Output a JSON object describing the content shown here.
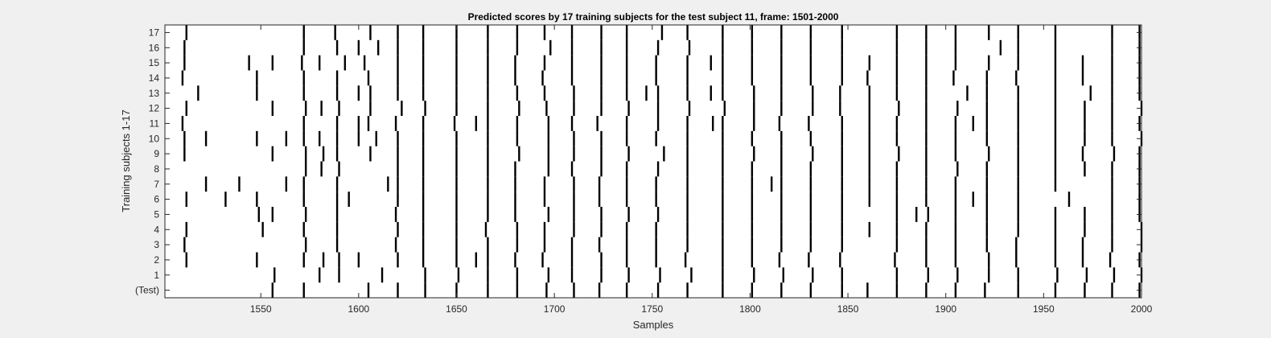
{
  "chart_data": {
    "type": "raster",
    "title": "Predicted scores by 17 training subjects for the test subject 11, frame: 1501-2000",
    "xlabel": "Samples",
    "ylabel": "Training subjects 1-17",
    "xlim": [
      1501,
      2000
    ],
    "x_ticks": [
      1550,
      1600,
      1650,
      1700,
      1750,
      1800,
      1850,
      1900,
      1950,
      2000
    ],
    "y_tick_labels": [
      "(Test)",
      "1",
      "2",
      "3",
      "4",
      "5",
      "6",
      "7",
      "8",
      "9",
      "10",
      "11",
      "12",
      "13",
      "14",
      "15",
      "16",
      "17"
    ],
    "grid": false,
    "colors": {
      "mark": "#000000",
      "plot_bg": "#ffffff",
      "figure_bg": "#f0f0f0",
      "axis": "#262626"
    },
    "rows": [
      {
        "label": "(Test)",
        "x": [
          1556,
          1572,
          1605,
          1620,
          1634,
          1650,
          1666,
          1681,
          1696,
          1710,
          1723,
          1737,
          1753,
          1768,
          1786,
          1801,
          1816,
          1831,
          1847,
          1860,
          1875,
          1890,
          1905,
          1920,
          1937,
          1956,
          1971,
          1985,
          1999
        ]
      },
      {
        "label": "1",
        "x": [
          1557,
          1580,
          1590,
          1612,
          1634,
          1651,
          1666,
          1681,
          1697,
          1709,
          1724,
          1738,
          1754,
          1770,
          1786,
          1802,
          1817,
          1832,
          1847,
          1875,
          1891,
          1906,
          1922,
          1937,
          1957,
          1972,
          1986,
          2000
        ]
      },
      {
        "label": "2",
        "x": [
          1512,
          1548,
          1572,
          1582,
          1590,
          1600,
          1620,
          1633,
          1650,
          1660,
          1666,
          1680,
          1694,
          1709,
          1724,
          1737,
          1752,
          1767,
          1786,
          1801,
          1815,
          1830,
          1846,
          1874,
          1890,
          1905,
          1922,
          1936,
          1956,
          1970,
          1984,
          1999
        ]
      },
      {
        "label": "3",
        "x": [
          1511,
          1573,
          1589,
          1619,
          1633,
          1650,
          1666,
          1681,
          1695,
          1709,
          1723,
          1737,
          1752,
          1768,
          1786,
          1801,
          1816,
          1831,
          1847,
          1875,
          1890,
          1905,
          1921,
          1936,
          1956,
          1970,
          1985,
          2000
        ]
      },
      {
        "label": "4",
        "x": [
          1512,
          1551,
          1572,
          1589,
          1620,
          1633,
          1650,
          1665,
          1681,
          1695,
          1710,
          1724,
          1737,
          1752,
          1768,
          1786,
          1801,
          1816,
          1831,
          1847,
          1861,
          1875,
          1890,
          1905,
          1921,
          1937,
          1956,
          1971,
          1985,
          2000
        ]
      },
      {
        "label": "5",
        "x": [
          1549,
          1556,
          1573,
          1589,
          1619,
          1633,
          1650,
          1666,
          1680,
          1697,
          1710,
          1724,
          1738,
          1753,
          1768,
          1786,
          1801,
          1816,
          1831,
          1847,
          1875,
          1885,
          1891,
          1905,
          1921,
          1937,
          1956,
          1971,
          1985,
          1999
        ]
      },
      {
        "label": "6",
        "x": [
          1512,
          1532,
          1548,
          1572,
          1589,
          1595,
          1620,
          1633,
          1650,
          1666,
          1680,
          1695,
          1710,
          1723,
          1737,
          1752,
          1768,
          1786,
          1801,
          1816,
          1831,
          1847,
          1861,
          1875,
          1890,
          1905,
          1914,
          1921,
          1937,
          1963,
          1985,
          1999
        ]
      },
      {
        "label": "7",
        "x": [
          1522,
          1539,
          1563,
          1572,
          1589,
          1615,
          1620,
          1633,
          1650,
          1666,
          1680,
          1695,
          1710,
          1723,
          1737,
          1752,
          1768,
          1786,
          1801,
          1811,
          1816,
          1831,
          1847,
          1861,
          1875,
          1890,
          1905,
          1921,
          1937,
          1956,
          1985,
          1999
        ]
      },
      {
        "label": "8",
        "x": [
          1573,
          1581,
          1590,
          1620,
          1633,
          1650,
          1666,
          1680,
          1697,
          1709,
          1724,
          1737,
          1753,
          1768,
          1786,
          1801,
          1816,
          1831,
          1847,
          1861,
          1875,
          1890,
          1906,
          1921,
          1937,
          1956,
          1971,
          1985,
          1999
        ]
      },
      {
        "label": "9",
        "x": [
          1511,
          1556,
          1573,
          1582,
          1589,
          1606,
          1620,
          1633,
          1650,
          1666,
          1682,
          1697,
          1710,
          1724,
          1738,
          1756,
          1768,
          1786,
          1802,
          1816,
          1832,
          1847,
          1861,
          1876,
          1890,
          1905,
          1922,
          1937,
          1956,
          1970,
          1986,
          1999
        ]
      },
      {
        "label": "10",
        "x": [
          1511,
          1522,
          1548,
          1563,
          1572,
          1580,
          1589,
          1600,
          1609,
          1620,
          1633,
          1650,
          1666,
          1681,
          1697,
          1710,
          1724,
          1737,
          1752,
          1768,
          1786,
          1801,
          1816,
          1831,
          1847,
          1861,
          1875,
          1890,
          1905,
          1921,
          1937,
          1956,
          1971,
          1985,
          2000
        ]
      },
      {
        "label": "11",
        "x": [
          1510,
          1572,
          1589,
          1600,
          1605,
          1619,
          1633,
          1649,
          1660,
          1666,
          1681,
          1697,
          1709,
          1722,
          1737,
          1753,
          1768,
          1781,
          1786,
          1802,
          1815,
          1830,
          1847,
          1861,
          1875,
          1890,
          1905,
          1914,
          1921,
          1937,
          1956,
          1971,
          1985,
          1999
        ]
      },
      {
        "label": "12",
        "x": [
          1512,
          1556,
          1573,
          1581,
          1590,
          1606,
          1622,
          1634,
          1650,
          1666,
          1682,
          1696,
          1710,
          1724,
          1738,
          1753,
          1769,
          1787,
          1802,
          1816,
          1832,
          1846,
          1861,
          1876,
          1890,
          1906,
          1921,
          1937,
          1956,
          1971,
          1985,
          2000
        ]
      },
      {
        "label": "13",
        "x": [
          1518,
          1548,
          1572,
          1589,
          1600,
          1606,
          1620,
          1633,
          1650,
          1666,
          1681,
          1695,
          1710,
          1724,
          1737,
          1747,
          1753,
          1768,
          1780,
          1786,
          1802,
          1816,
          1832,
          1846,
          1861,
          1875,
          1890,
          1911,
          1921,
          1937,
          1956,
          1974,
          1985,
          1999
        ]
      },
      {
        "label": "14",
        "x": [
          1510,
          1548,
          1572,
          1589,
          1605,
          1620,
          1633,
          1650,
          1666,
          1680,
          1694,
          1709,
          1724,
          1737,
          1752,
          1768,
          1786,
          1801,
          1816,
          1831,
          1847,
          1860,
          1875,
          1890,
          1904,
          1921,
          1936,
          1956,
          1970,
          1985,
          1999
        ]
      },
      {
        "label": "15",
        "x": [
          1511,
          1544,
          1556,
          1571,
          1580,
          1593,
          1603,
          1620,
          1633,
          1650,
          1666,
          1680,
          1695,
          1709,
          1724,
          1737,
          1752,
          1768,
          1780,
          1786,
          1801,
          1816,
          1831,
          1847,
          1861,
          1875,
          1890,
          1905,
          1922,
          1937,
          1956,
          1970,
          1985,
          1999
        ]
      },
      {
        "label": "16",
        "x": [
          1511,
          1572,
          1589,
          1600,
          1610,
          1620,
          1633,
          1650,
          1666,
          1681,
          1698,
          1709,
          1724,
          1737,
          1753,
          1769,
          1786,
          1801,
          1816,
          1831,
          1847,
          1875,
          1890,
          1905,
          1928,
          1937,
          1956,
          1985,
          1999
        ]
      },
      {
        "label": "17",
        "x": [
          1512,
          1572,
          1588,
          1606,
          1620,
          1633,
          1650,
          1666,
          1681,
          1695,
          1709,
          1724,
          1737,
          1755,
          1768,
          1786,
          1801,
          1816,
          1831,
          1847,
          1875,
          1890,
          1905,
          1922,
          1937,
          1956,
          1985,
          1999
        ]
      }
    ]
  }
}
